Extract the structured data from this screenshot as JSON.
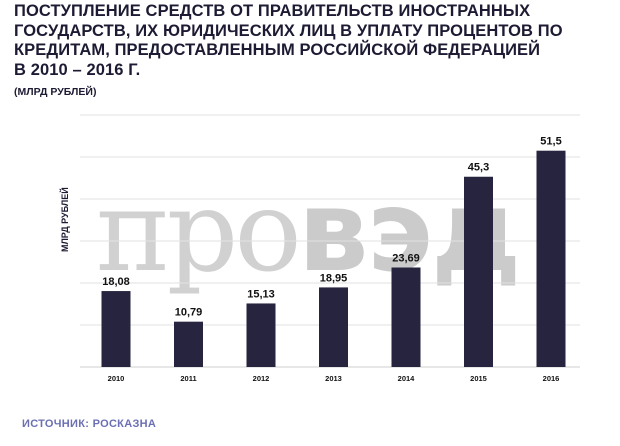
{
  "title_lines": [
    "ПОСТУПЛЕНИЕ СРЕДСТВ ОТ ПРАВИТЕЛЬСТВ ИНОСТРАННЫХ",
    "ГОСУДАРСТВ, ИХ ЮРИДИЧЕСКИХ ЛИЦ В УПЛАТУ ПРОЦЕНТОВ ПО",
    "КРЕДИТАМ, ПРЕДОСТАВЛЕННЫМ РОССИЙСКОЙ ФЕДЕРАЦИЕЙ",
    "В 2010 – 2016 Г."
  ],
  "subtitle": "(МЛРД РУБЛЕЙ)",
  "watermark": {
    "light": "про",
    "bold": "вэд"
  },
  "source": "ИСТОЧНИК: РОСКАЗНА",
  "colors": {
    "bar": "#26243f",
    "title": "#1c1b33",
    "grid": "#e2e2e2",
    "source": "#6b6fb3",
    "watermark": "#cfcfcf"
  },
  "chart_data": {
    "type": "bar",
    "categories": [
      "2010",
      "2011",
      "2012",
      "2013",
      "2014",
      "2015",
      "2016"
    ],
    "values": [
      18.08,
      10.79,
      15.13,
      18.95,
      23.69,
      45.3,
      51.5
    ],
    "data_labels": [
      "18,08",
      "10,79",
      "15,13",
      "18,95",
      "23,69",
      "45,3",
      "51,5"
    ],
    "title": "ПОСТУПЛЕНИЕ СРЕДСТВ ОТ ПРАВИТЕЛЬСТВ ИНОСТРАННЫХ ГОСУДАРСТВ, ИХ ЮРИДИЧЕСКИХ ЛИЦ В УПЛАТУ ПРОЦЕНТОВ ПО КРЕДИТАМ, ПРЕДОСТАВЛЕННЫМ РОССИЙСКОЙ ФЕДЕРАЦИЕЙ В 2010 – 2016 Г.",
    "xlabel": "",
    "ylabel": "МЛРД РУБЛЕЙ",
    "ylim": [
      0,
      60
    ],
    "grid": true,
    "gridlines": [
      0,
      10,
      20,
      30,
      40,
      50,
      60
    ],
    "legend": "none"
  }
}
